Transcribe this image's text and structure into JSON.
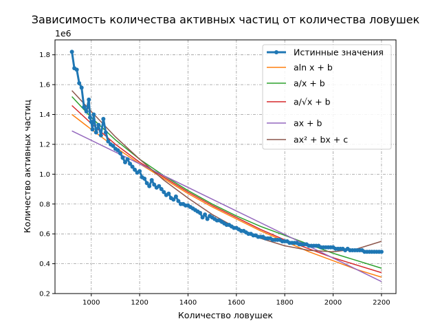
{
  "chart_data": {
    "type": "line",
    "title": "Зависимость количества активных частиц от количества ловушек",
    "xlabel": "Количество ловушек",
    "ylabel": "Количество активных частиц",
    "y_scale_text": "1e6",
    "xlim": [
      850,
      2260
    ],
    "ylim": [
      0.2,
      1.9
    ],
    "x_ticks": [
      1000,
      1200,
      1400,
      1600,
      1800,
      2000,
      2200
    ],
    "x_tick_labels": [
      "1000",
      "1200",
      "1400",
      "1600",
      "1800",
      "2000",
      "2200"
    ],
    "y_ticks": [
      0.2,
      0.4,
      0.6,
      0.8,
      1.0,
      1.2,
      1.4,
      1.6,
      1.8
    ],
    "y_tick_labels": [
      "0.2",
      "0.4",
      "0.6",
      "0.8",
      "1.0",
      "1.2",
      "1.4",
      "1.6",
      "1.8"
    ],
    "grid": true,
    "legend_position": "top-right",
    "series": [
      {
        "name": "Истинные значения",
        "color": "#1f77b4",
        "marker": "circle",
        "x": [
          920,
          930,
          940,
          950,
          960,
          970,
          980,
          990,
          995,
          1000,
          1005,
          1010,
          1020,
          1030,
          1040,
          1050,
          1060,
          1070,
          1080,
          1090,
          1100,
          1110,
          1120,
          1130,
          1140,
          1150,
          1160,
          1170,
          1180,
          1190,
          1200,
          1210,
          1220,
          1230,
          1240,
          1250,
          1260,
          1270,
          1280,
          1290,
          1300,
          1310,
          1320,
          1330,
          1340,
          1350,
          1360,
          1370,
          1380,
          1390,
          1400,
          1410,
          1420,
          1430,
          1440,
          1450,
          1460,
          1470,
          1480,
          1490,
          1500,
          1510,
          1520,
          1530,
          1540,
          1550,
          1560,
          1570,
          1580,
          1590,
          1600,
          1610,
          1620,
          1630,
          1640,
          1650,
          1660,
          1670,
          1680,
          1690,
          1700,
          1710,
          1720,
          1730,
          1740,
          1750,
          1760,
          1770,
          1780,
          1790,
          1800,
          1810,
          1820,
          1830,
          1840,
          1850,
          1860,
          1870,
          1880,
          1890,
          1900,
          1910,
          1920,
          1930,
          1940,
          1950,
          1960,
          1970,
          1980,
          1990,
          2000,
          2010,
          2020,
          2030,
          2040,
          2050,
          2060,
          2070,
          2080,
          2090,
          2100,
          2110,
          2120,
          2130,
          2140,
          2150,
          2160,
          2170,
          2180,
          2190,
          2200
        ],
        "y": [
          1.82,
          1.71,
          1.7,
          1.61,
          1.58,
          1.45,
          1.42,
          1.5,
          1.38,
          1.35,
          1.3,
          1.4,
          1.28,
          1.33,
          1.26,
          1.37,
          1.28,
          1.22,
          1.2,
          1.19,
          1.17,
          1.16,
          1.14,
          1.11,
          1.08,
          1.1,
          1.07,
          1.05,
          1.03,
          1.01,
          1.02,
          0.98,
          0.97,
          0.94,
          0.92,
          0.96,
          0.93,
          0.91,
          0.92,
          0.9,
          0.88,
          0.86,
          0.87,
          0.84,
          0.83,
          0.85,
          0.82,
          0.8,
          0.8,
          0.79,
          0.79,
          0.78,
          0.77,
          0.76,
          0.75,
          0.74,
          0.71,
          0.73,
          0.7,
          0.72,
          0.71,
          0.7,
          0.69,
          0.69,
          0.68,
          0.67,
          0.66,
          0.66,
          0.65,
          0.64,
          0.64,
          0.63,
          0.62,
          0.62,
          0.61,
          0.6,
          0.6,
          0.59,
          0.59,
          0.58,
          0.58,
          0.58,
          0.57,
          0.57,
          0.57,
          0.56,
          0.56,
          0.56,
          0.56,
          0.55,
          0.55,
          0.55,
          0.54,
          0.54,
          0.54,
          0.54,
          0.53,
          0.53,
          0.53,
          0.53,
          0.52,
          0.52,
          0.52,
          0.52,
          0.52,
          0.51,
          0.51,
          0.51,
          0.51,
          0.51,
          0.51,
          0.5,
          0.5,
          0.5,
          0.5,
          0.49,
          0.5,
          0.49,
          0.49,
          0.49,
          0.49,
          0.49,
          0.49,
          0.48,
          0.48,
          0.48,
          0.48,
          0.48,
          0.48,
          0.48,
          0.48
        ]
      },
      {
        "name": "aln x + b",
        "color": "#ff7f0e",
        "x": [
          920,
          1000,
          1100,
          1200,
          1300,
          1400,
          1500,
          1600,
          1700,
          1800,
          1900,
          2000,
          2100,
          2200
        ],
        "y": [
          1.4,
          1.3,
          1.18,
          1.07,
          0.97,
          0.87,
          0.78,
          0.7,
          0.62,
          0.55,
          0.48,
          0.42,
          0.36,
          0.31
        ]
      },
      {
        "name": "a/x + b",
        "color": "#2ca02c",
        "x": [
          920,
          1000,
          1100,
          1200,
          1300,
          1400,
          1500,
          1600,
          1700,
          1800,
          1900,
          2000,
          2100,
          2200
        ],
        "y": [
          1.52,
          1.38,
          1.23,
          1.1,
          0.99,
          0.89,
          0.8,
          0.72,
          0.65,
          0.59,
          0.53,
          0.47,
          0.42,
          0.37
        ]
      },
      {
        "name": "a/√x + b",
        "color": "#d62728",
        "x": [
          920,
          1000,
          1100,
          1200,
          1300,
          1400,
          1500,
          1600,
          1700,
          1800,
          1900,
          2000,
          2100,
          2200
        ],
        "y": [
          1.46,
          1.34,
          1.2,
          1.08,
          0.98,
          0.88,
          0.79,
          0.71,
          0.63,
          0.56,
          0.5,
          0.44,
          0.39,
          0.34
        ]
      },
      {
        "name": "ax + b",
        "color": "#9467bd",
        "x": [
          920,
          2200
        ],
        "y": [
          1.29,
          0.28
        ]
      },
      {
        "name": "ax² + bx + c",
        "color": "#8c564b",
        "x": [
          920,
          1000,
          1100,
          1200,
          1300,
          1400,
          1500,
          1600,
          1700,
          1800,
          1900,
          2000,
          2100,
          2200
        ],
        "y": [
          1.56,
          1.42,
          1.25,
          1.1,
          0.96,
          0.84,
          0.73,
          0.64,
          0.57,
          0.52,
          0.49,
          0.48,
          0.5,
          0.55
        ]
      }
    ]
  }
}
